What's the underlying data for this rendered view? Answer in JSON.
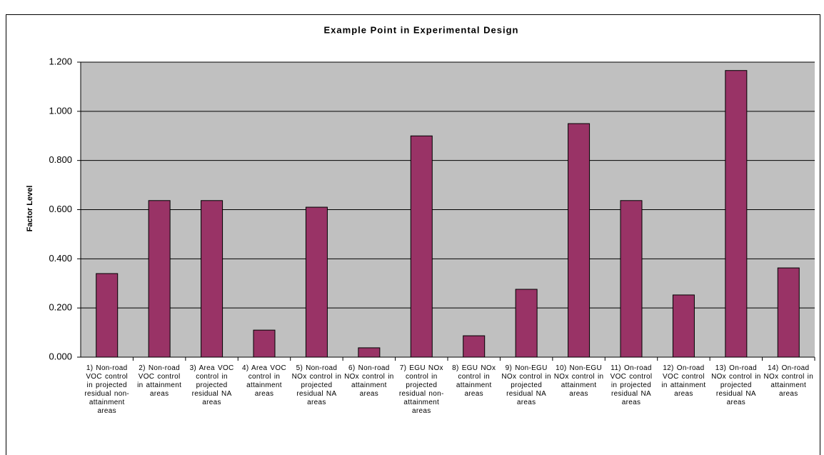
{
  "chart_data": {
    "type": "bar",
    "title": "Example Point in Experimental Design",
    "ylabel": "Factor Level",
    "categories": [
      "1) Non-road VOC control in projected residual non-attainment areas",
      "2) Non-road VOC control in attainment areas",
      "3) Area VOC control in projected residual NA areas",
      "4) Area VOC control in attainment areas",
      "5) Non-road NOx control in projected residual NA areas",
      "6) Non-road NOx control in attainment areas",
      "7) EGU NOx control in projected residual non-attainment areas",
      "8) EGU NOx control in attainment areas",
      "9) Non-EGU NOx control in projected residual NA areas",
      "10) Non-EGU NOx control in attainment areas",
      "11) On-road VOC control in projected residual NA areas",
      "12) On-road VOC control in attainment areas",
      "13) On-road NOx control in projected residual NA areas",
      "14) On-road NOx control in attainment areas"
    ],
    "values": [
      0.34,
      0.637,
      0.637,
      0.11,
      0.61,
      0.038,
      0.9,
      0.087,
      0.276,
      0.95,
      0.637,
      0.253,
      1.166,
      0.363
    ],
    "color": "#993366",
    "ylim": [
      0,
      1.2
    ],
    "yticks": [
      {
        "value": 0,
        "label": "0.000"
      },
      {
        "value": 0.2,
        "label": "0.200"
      },
      {
        "value": 0.4,
        "label": "0.400"
      },
      {
        "value": 0.6,
        "label": "0.600"
      },
      {
        "value": 0.8,
        "label": "0.800"
      },
      {
        "value": 1.0,
        "label": "1.000"
      },
      {
        "value": 1.2,
        "label": "1.200"
      }
    ],
    "grid": true
  }
}
